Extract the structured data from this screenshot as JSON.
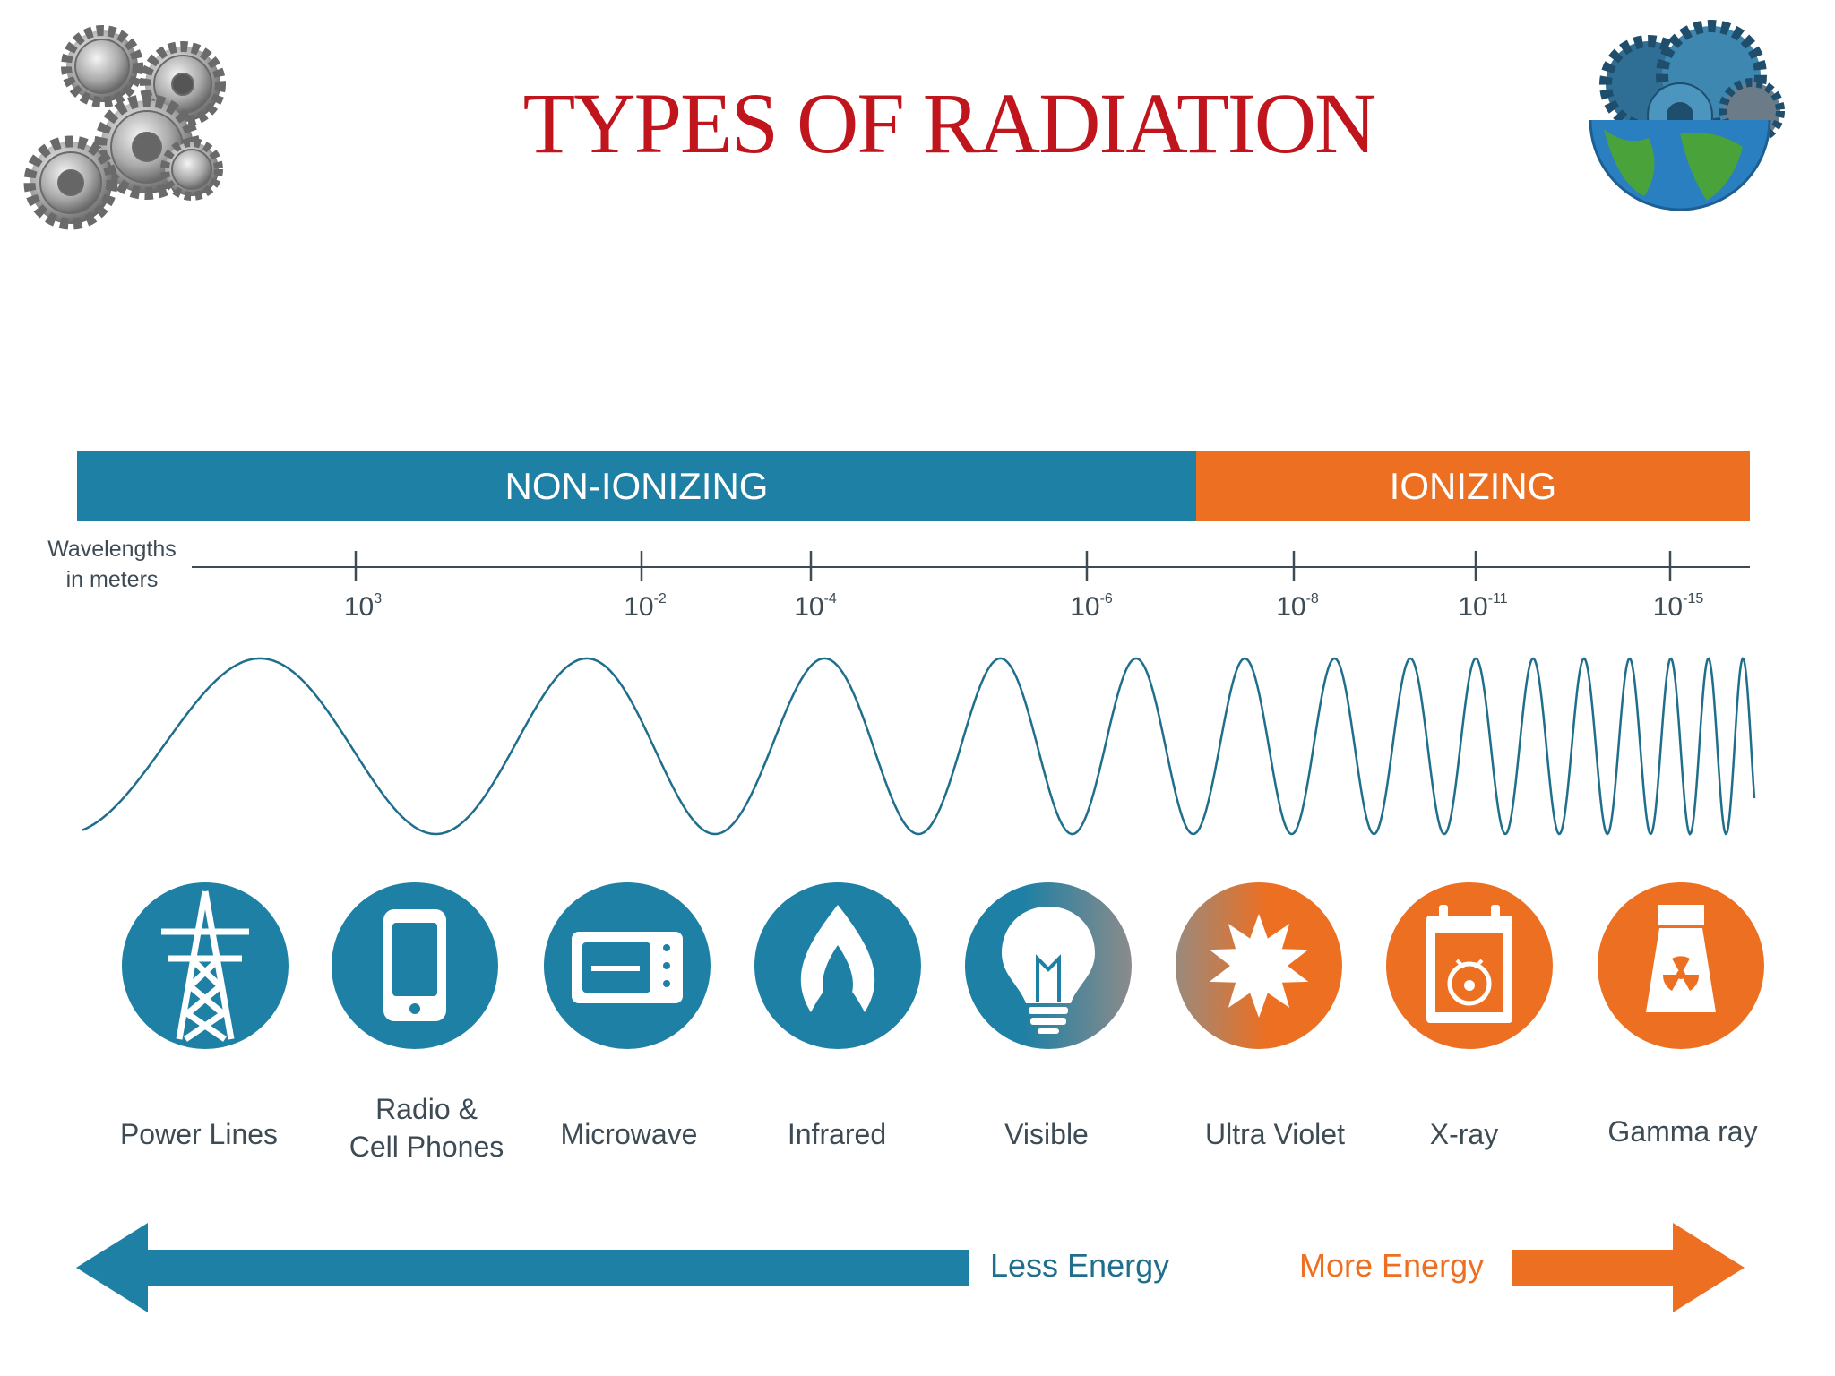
{
  "title": "TYPES OF RADIATION",
  "bands": {
    "non_ionizing": "NON-IONIZING",
    "ionizing": "IONIZING"
  },
  "axis_label": {
    "line1": "Wavelengths",
    "line2": "in meters"
  },
  "ticks": [
    {
      "base": "10",
      "exp": "3"
    },
    {
      "base": "10",
      "exp": "-2"
    },
    {
      "base": "10",
      "exp": "-4"
    },
    {
      "base": "10",
      "exp": "-6"
    },
    {
      "base": "10",
      "exp": "-8"
    },
    {
      "base": "10",
      "exp": "-11"
    },
    {
      "base": "10",
      "exp": "-15"
    }
  ],
  "sources": [
    {
      "label": "Power Lines",
      "icon": "power-tower-icon"
    },
    {
      "label": "Radio &",
      "label2": "Cell Phones",
      "icon": "cell-phone-icon"
    },
    {
      "label": "Microwave",
      "icon": "microwave-icon"
    },
    {
      "label": "Infrared",
      "icon": "flame-icon"
    },
    {
      "label": "Visible",
      "icon": "light-bulb-icon"
    },
    {
      "label": "Ultra Violet",
      "icon": "sun-icon"
    },
    {
      "label": "X-ray",
      "icon": "xray-film-icon"
    },
    {
      "label": "Gamma ray",
      "icon": "nuclear-plant-icon"
    }
  ],
  "energy": {
    "less": "Less Energy",
    "more": "More Energy"
  },
  "colors": {
    "teal": "#1e80a4",
    "orange": "#ec6f22",
    "title": "#c0151c",
    "text": "#3d4b55"
  },
  "decorations": {
    "left_icon": "gears-icon",
    "right_icon": "globe-gears-icon"
  }
}
